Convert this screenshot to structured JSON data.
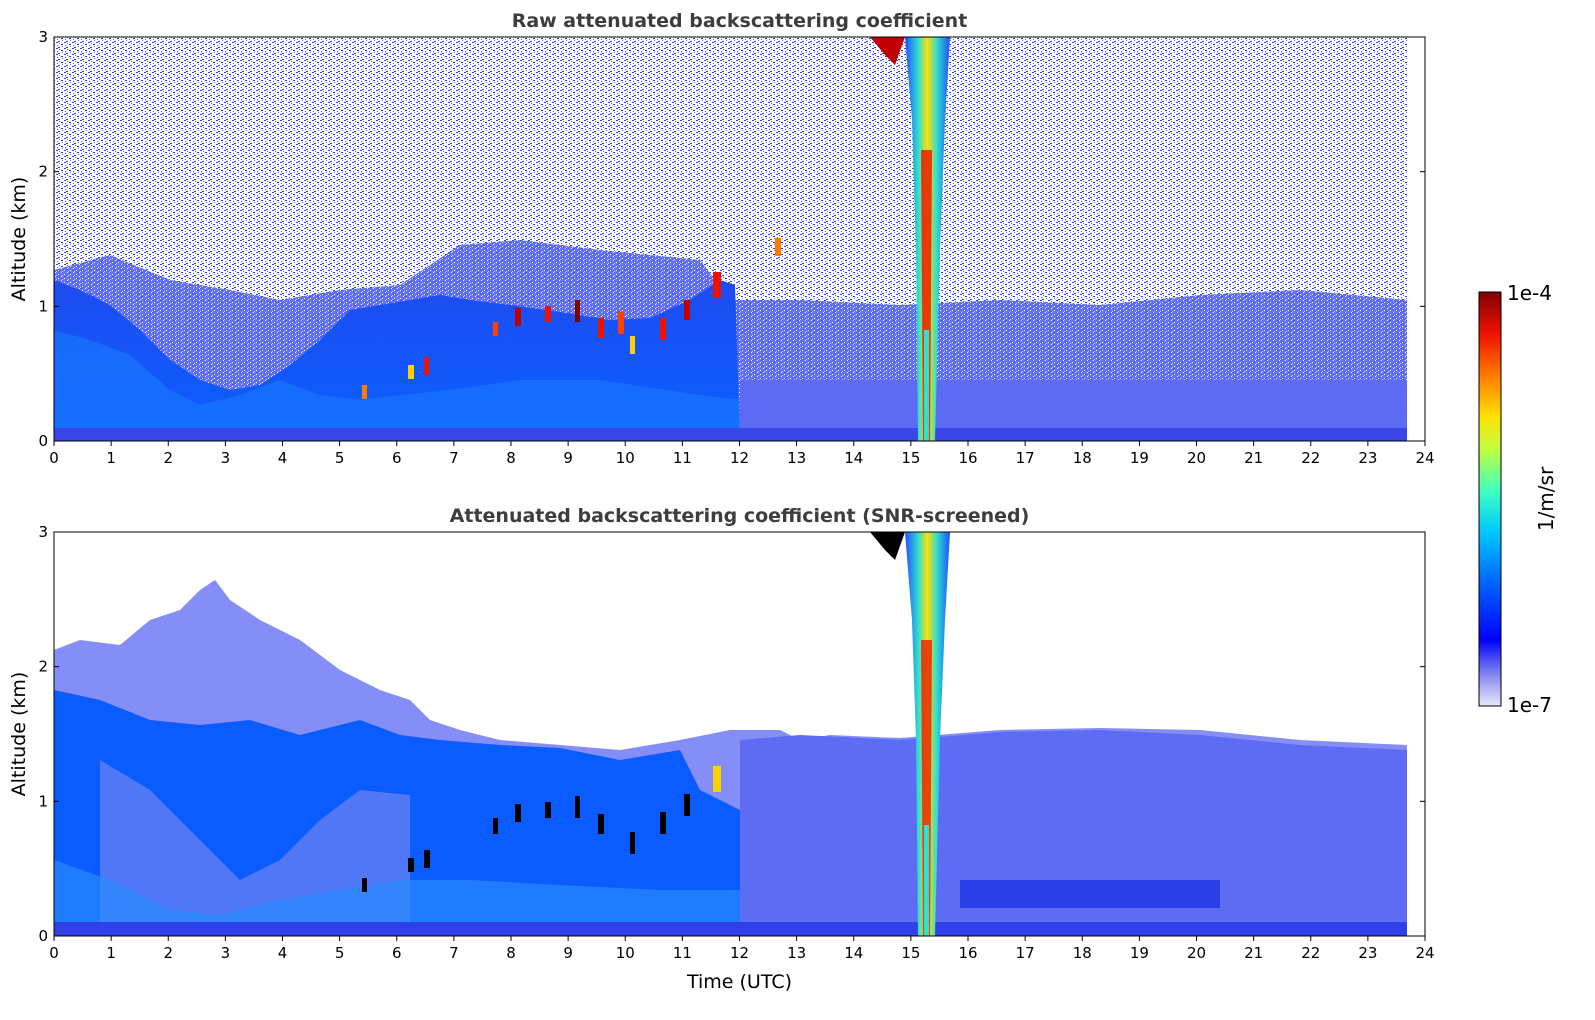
{
  "chart_data": [
    {
      "type": "heatmap",
      "title": "Raw attenuated backscattering coefficient",
      "xlabel": "",
      "ylabel": "Altitude (km)",
      "xlim": [
        0,
        24
      ],
      "ylim": [
        0,
        3
      ],
      "xticks": [
        "0",
        "1",
        "2",
        "3",
        "4",
        "5",
        "6",
        "7",
        "8",
        "9",
        "10",
        "11",
        "12",
        "13",
        "14",
        "15",
        "16",
        "17",
        "18",
        "19",
        "20",
        "21",
        "22",
        "23",
        "24"
      ],
      "yticks": [
        "0",
        "1",
        "2",
        "3"
      ],
      "data_extent_hours": [
        0,
        23.65
      ],
      "features": {
        "boundary_layer_top_km": [
          [
            0,
            1.2
          ],
          [
            1,
            1.0
          ],
          [
            2,
            0.45
          ],
          [
            3,
            0.35
          ],
          [
            4,
            0.55
          ],
          [
            5,
            1.0
          ],
          [
            6,
            1.05
          ],
          [
            7,
            1.1
          ],
          [
            8,
            0.95
          ],
          [
            9,
            0.85
          ],
          [
            10,
            0.85
          ],
          [
            11,
            1.15
          ],
          [
            12,
            1.3
          ]
        ],
        "cloud_base_km": [
          [
            5.4,
            0.35
          ],
          [
            6.4,
            0.55
          ],
          [
            7.7,
            0.8
          ],
          [
            8.4,
            0.9
          ],
          [
            9.2,
            0.85
          ],
          [
            9.9,
            0.75
          ],
          [
            10.6,
            0.8
          ],
          [
            11.5,
            1.1
          ],
          [
            12.7,
            1.4
          ]
        ],
        "precipitation_column_hours": [
          15.1,
          15.4
        ]
      }
    },
    {
      "type": "heatmap",
      "title": "Attenuated backscattering coefficient (SNR-screened)",
      "xlabel": "Time (UTC)",
      "ylabel": "Altitude (km)",
      "xlim": [
        0,
        24
      ],
      "ylim": [
        0,
        3
      ],
      "xticks": [
        "0",
        "1",
        "2",
        "3",
        "4",
        "5",
        "6",
        "7",
        "8",
        "9",
        "10",
        "11",
        "12",
        "13",
        "14",
        "15",
        "16",
        "17",
        "18",
        "19",
        "20",
        "21",
        "22",
        "23",
        "24"
      ],
      "yticks": [
        "0",
        "1",
        "2",
        "3"
      ],
      "data_extent_hours": [
        0,
        23.65
      ],
      "features": {
        "signal_top_km": [
          [
            0,
            2.1
          ],
          [
            1,
            2.2
          ],
          [
            2,
            2.3
          ],
          [
            3,
            2.6
          ],
          [
            4,
            2.2
          ],
          [
            5,
            1.9
          ],
          [
            6,
            1.8
          ],
          [
            7,
            1.5
          ],
          [
            8,
            1.45
          ],
          [
            9,
            1.4
          ],
          [
            10,
            1.35
          ],
          [
            11,
            1.4
          ],
          [
            12,
            1.55
          ],
          [
            13,
            1.6
          ],
          [
            16,
            1.55
          ],
          [
            18,
            1.55
          ],
          [
            20,
            1.5
          ],
          [
            21,
            1.5
          ],
          [
            22,
            1.4
          ],
          [
            23.65,
            1.35
          ]
        ],
        "precipitation_column_hours": [
          15.1,
          15.4
        ]
      }
    }
  ],
  "colorbar": {
    "max_label": "1e-4",
    "min_label": "1e-7",
    "unit_label": "1/m/sr",
    "scale": "log"
  }
}
